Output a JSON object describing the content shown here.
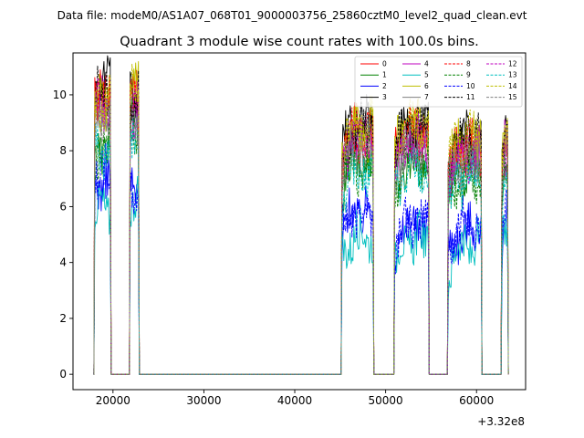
{
  "chart_data": {
    "type": "line",
    "suptitle": "Data file: modeM0/AS1A07_068T01_9000003756_25860cztM0_level2_quad_clean.evt",
    "title": "Quadrant 3 module wise count rates with 100.0s bins.",
    "xlabel": "",
    "ylabel": "",
    "x_offset_label": "+3.32e8",
    "xlim": [
      15600,
      65400
    ],
    "ylim": [
      -0.55,
      11.5
    ],
    "xticks": [
      20000,
      30000,
      40000,
      50000,
      60000
    ],
    "yticks": [
      0,
      2,
      4,
      6,
      8,
      10
    ],
    "legend": {
      "position": "top-right",
      "columns": 4
    },
    "segments": [
      {
        "start": 18000,
        "end": 19700
      },
      {
        "start": 21900,
        "end": 22800
      },
      {
        "start": 45200,
        "end": 48600
      },
      {
        "start": 51000,
        "end": 54700
      },
      {
        "start": 56900,
        "end": 60500
      },
      {
        "start": 62800,
        "end": 63400
      }
    ],
    "series": [
      {
        "name": "0",
        "color": "#ff0000",
        "dash": "solid",
        "levels": [
          10.2,
          9.8,
          8.8,
          8.8,
          8.2,
          8.4
        ]
      },
      {
        "name": "1",
        "color": "#008000",
        "dash": "solid",
        "levels": [
          8.2,
          8.8,
          7.6,
          7.6,
          7.2,
          7.4
        ]
      },
      {
        "name": "2",
        "color": "#0000ff",
        "dash": "solid",
        "levels": [
          6.9,
          6.5,
          5.9,
          5.4,
          5.2,
          5.6
        ]
      },
      {
        "name": "3",
        "color": "#000000",
        "dash": "solid",
        "levels": [
          10.4,
          10.0,
          8.9,
          8.9,
          8.5,
          8.6
        ]
      },
      {
        "name": "4",
        "color": "#bf00bf",
        "dash": "solid",
        "levels": [
          9.6,
          9.5,
          8.5,
          8.4,
          8.0,
          8.2
        ]
      },
      {
        "name": "5",
        "color": "#00bfbf",
        "dash": "solid",
        "levels": [
          5.9,
          6.3,
          5.0,
          4.8,
          4.6,
          5.0
        ]
      },
      {
        "name": "6",
        "color": "#bfbf00",
        "dash": "solid",
        "levels": [
          9.8,
          10.1,
          8.7,
          8.8,
          8.3,
          8.5
        ]
      },
      {
        "name": "7",
        "color": "#808080",
        "dash": "solid",
        "levels": [
          9.3,
          9.2,
          8.3,
          8.2,
          7.8,
          8.0
        ]
      },
      {
        "name": "8",
        "color": "#ff0000",
        "dash": "dashed",
        "levels": [
          9.9,
          9.7,
          8.6,
          8.6,
          8.1,
          8.3
        ]
      },
      {
        "name": "9",
        "color": "#008000",
        "dash": "dashed",
        "levels": [
          8.0,
          8.6,
          7.5,
          7.4,
          7.1,
          7.2
        ]
      },
      {
        "name": "10",
        "color": "#0000ff",
        "dash": "dashed",
        "levels": [
          7.2,
          6.6,
          5.9,
          5.5,
          5.4,
          5.6
        ]
      },
      {
        "name": "11",
        "color": "#000000",
        "dash": "dashed",
        "levels": [
          10.1,
          9.9,
          8.8,
          8.8,
          8.4,
          8.5
        ]
      },
      {
        "name": "12",
        "color": "#bf00bf",
        "dash": "dashed",
        "levels": [
          9.5,
          9.4,
          8.4,
          8.3,
          7.9,
          8.1
        ]
      },
      {
        "name": "13",
        "color": "#00bfbf",
        "dash": "dashed",
        "levels": [
          8.0,
          8.2,
          7.3,
          7.2,
          6.9,
          7.1
        ]
      },
      {
        "name": "14",
        "color": "#bfbf00",
        "dash": "dashed",
        "levels": [
          9.7,
          10.0,
          8.9,
          8.9,
          8.4,
          8.6
        ]
      },
      {
        "name": "15",
        "color": "#808080",
        "dash": "dashed",
        "levels": [
          9.2,
          9.1,
          8.2,
          8.1,
          7.7,
          7.9
        ]
      }
    ]
  }
}
